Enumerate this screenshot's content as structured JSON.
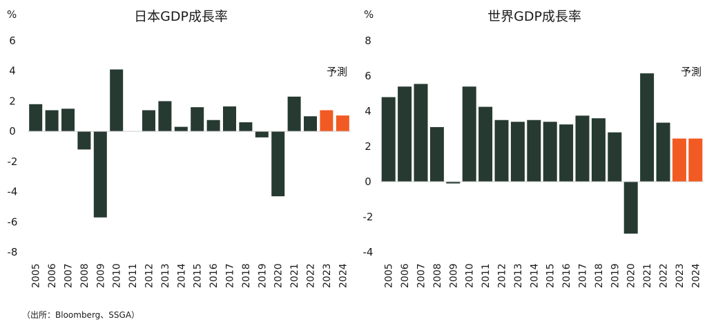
{
  "source": "（出所：Bloomberg、SSGA）",
  "colors": {
    "actual": "#263a31",
    "forecast": "#f15a22"
  },
  "chart_data": [
    {
      "type": "bar",
      "title": "日本GDP成長率",
      "unit": "%",
      "note": "予測",
      "ylim": [
        -8,
        6
      ],
      "yticks": [
        6,
        4,
        2,
        0,
        -2,
        -4,
        -6,
        -8
      ],
      "ytick_labels": [
        "6",
        "4",
        "2",
        "0",
        "-2",
        "-4",
        "-6",
        "-8"
      ],
      "categories": [
        "2005",
        "2006",
        "2007",
        "2008",
        "2009",
        "2010",
        "2011",
        "2012",
        "2013",
        "2014",
        "2015",
        "2016",
        "2017",
        "2018",
        "2019",
        "2020",
        "2021",
        "2022",
        "2023",
        "2024"
      ],
      "values": [
        1.8,
        1.4,
        1.5,
        -1.2,
        -5.7,
        4.1,
        0.0,
        1.4,
        2.0,
        0.3,
        1.6,
        0.75,
        1.65,
        0.6,
        -0.4,
        -4.3,
        2.3,
        1.0,
        1.4,
        1.05
      ],
      "forecast_from": "2023",
      "grid": false
    },
    {
      "type": "bar",
      "title": "世界GDP成長率",
      "unit": "%",
      "note": "予測",
      "ylim": [
        -4,
        8
      ],
      "yticks": [
        8,
        6,
        4,
        2,
        0,
        -2,
        -4
      ],
      "ytick_labels": [
        "8",
        "6",
        "4",
        "2",
        "0",
        "-2",
        "-4"
      ],
      "categories": [
        "2005",
        "2006",
        "2007",
        "2008",
        "2009",
        "2010",
        "2011",
        "2012",
        "2013",
        "2014",
        "2015",
        "2016",
        "2017",
        "2018",
        "2019",
        "2020",
        "2021",
        "2022",
        "2023",
        "2024"
      ],
      "values": [
        4.8,
        5.4,
        5.55,
        3.1,
        -0.1,
        5.4,
        4.25,
        3.5,
        3.4,
        3.5,
        3.4,
        3.25,
        3.75,
        3.6,
        2.8,
        -2.95,
        6.15,
        3.35,
        2.45,
        2.45
      ],
      "forecast_from": "2023",
      "grid": false
    }
  ]
}
